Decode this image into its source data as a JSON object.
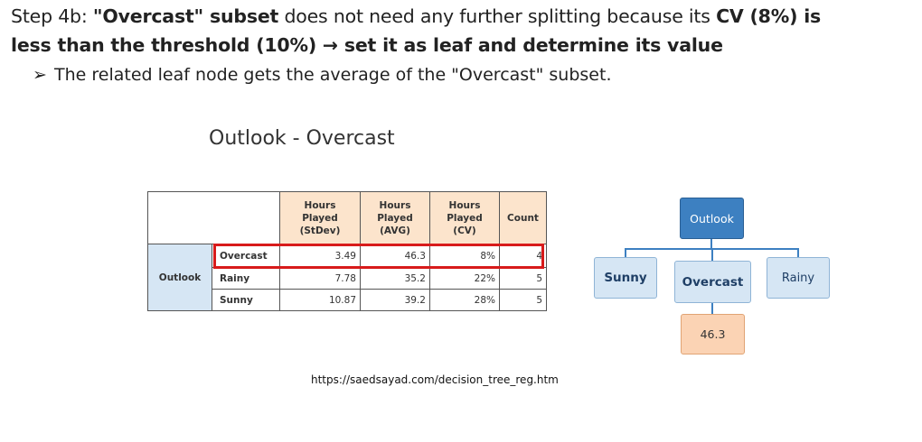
{
  "heading": {
    "line1_prefix": "Step 4b: ",
    "line1_bold1": "\"Overcast\" subset",
    "line1_mid": " does not need any further splitting because its ",
    "line1_bold2": "CV (8%) is",
    "line2_bold": "less than the threshold (10%) → set it as leaf and determine its value"
  },
  "bullet": {
    "arrow": "➢",
    "text": "The related leaf node gets the average of the \"Overcast\" subset."
  },
  "subtitle": "Outlook - Overcast",
  "table": {
    "headers": [
      [
        "Hours",
        "Played",
        "(StDev)"
      ],
      [
        "Hours",
        "Played",
        "(AVG)"
      ],
      [
        "Hours",
        "Played",
        "(CV)"
      ],
      [
        "Count"
      ]
    ],
    "row_group": "Outlook",
    "rows": [
      {
        "category": "Overcast",
        "stdev": "3.49",
        "avg": "46.3",
        "cv": "8%",
        "count": "4"
      },
      {
        "category": "Rainy",
        "stdev": "7.78",
        "avg": "35.2",
        "cv": "22%",
        "count": "5"
      },
      {
        "category": "Sunny",
        "stdev": "10.87",
        "avg": "39.2",
        "cv": "28%",
        "count": "5"
      }
    ],
    "highlighted_row": "Overcast",
    "highlight_color": "#d81b1b"
  },
  "tree": {
    "root": "Outlook",
    "children": [
      "Sunny",
      "Overcast",
      "Rainy"
    ],
    "leaf_value": "46.3",
    "root_color": "#3d80c1",
    "child_color": "#d6e6f4",
    "leaf_color": "#fbd3b4"
  },
  "source_url": "https://saedsayad.com/decision_tree_reg.htm"
}
